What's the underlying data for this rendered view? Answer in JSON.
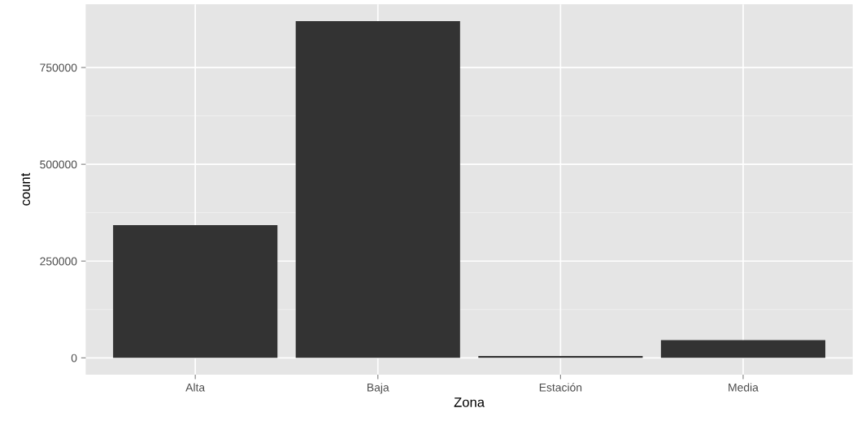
{
  "chart_data": {
    "type": "bar",
    "xlabel": "Zona",
    "ylabel": "count",
    "categories": [
      "Alta",
      "Baja",
      "Estación",
      "Media"
    ],
    "values": [
      343000,
      870000,
      5000,
      46000
    ],
    "color": "#333333",
    "ylim": [
      -43500,
      913500
    ],
    "yticks": [
      0,
      250000,
      500000,
      750000
    ],
    "grid": true
  }
}
